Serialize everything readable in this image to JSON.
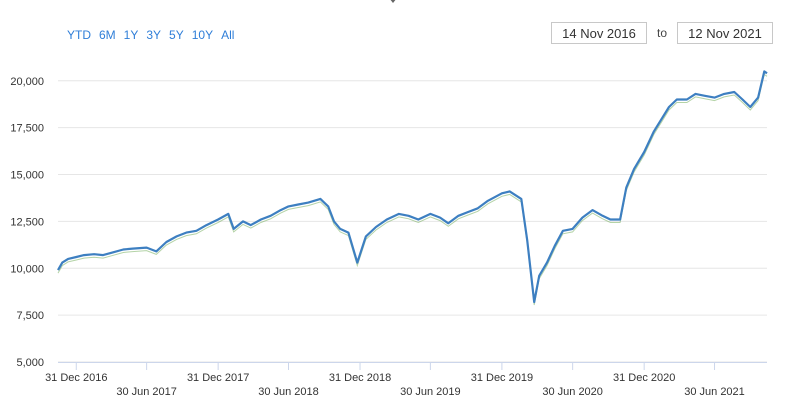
{
  "range_selector": {
    "buttons": [
      "YTD",
      "6M",
      "1Y",
      "3Y",
      "5Y",
      "10Y",
      "All"
    ],
    "from_date": "14 Nov 2016",
    "to_label": "to",
    "to_date": "12 Nov 2021"
  },
  "colors": {
    "line": "#3d7fc1",
    "line_secondary": "#6aa84f",
    "grid": "#e6e6e6",
    "button_text": "#2f7ed8"
  },
  "chart_data": {
    "type": "line",
    "title": "",
    "xlabel": "",
    "ylabel": "",
    "ylim": [
      5000,
      21000
    ],
    "yticks": [
      5000,
      7500,
      10000,
      12500,
      15000,
      17500,
      20000
    ],
    "ytick_labels": [
      "5,000",
      "7,500",
      "10,000",
      "12,500",
      "15,000",
      "17,500",
      "20,000"
    ],
    "xlim": [
      "2016-11-14",
      "2021-11-12"
    ],
    "xticks": [
      "2016-12-31",
      "2017-06-30",
      "2017-12-31",
      "2018-06-30",
      "2018-12-31",
      "2019-06-30",
      "2019-12-31",
      "2020-06-30",
      "2020-12-31",
      "2021-06-30"
    ],
    "xtick_labels": [
      "31 Dec 2016",
      "30 Jun 2017",
      "31 Dec 2017",
      "30 Jun 2018",
      "31 Dec 2018",
      "30 Jun 2019",
      "31 Dec 2019",
      "30 Jun 2020",
      "31 Dec 2020",
      "30 Jun 2021"
    ],
    "grid": "horizontal",
    "series": [
      {
        "x": [
          "2016-11-14",
          "2016-11-25",
          "2016-12-10",
          "2016-12-31",
          "2017-01-20",
          "2017-02-15",
          "2017-03-10",
          "2017-04-05",
          "2017-05-01",
          "2017-05-25",
          "2017-06-30",
          "2017-07-25",
          "2017-08-20",
          "2017-09-15",
          "2017-10-10",
          "2017-11-05",
          "2017-12-01",
          "2017-12-31",
          "2018-01-26",
          "2018-02-09",
          "2018-03-05",
          "2018-03-25",
          "2018-04-20",
          "2018-05-15",
          "2018-06-10",
          "2018-06-30",
          "2018-07-25",
          "2018-08-20",
          "2018-09-20",
          "2018-10-10",
          "2018-10-25",
          "2018-11-10",
          "2018-12-01",
          "2018-12-24",
          "2019-01-15",
          "2019-02-10",
          "2019-03-10",
          "2019-04-10",
          "2019-05-05",
          "2019-05-30",
          "2019-06-30",
          "2019-07-25",
          "2019-08-15",
          "2019-09-10",
          "2019-10-05",
          "2019-10-30",
          "2019-11-25",
          "2019-12-31",
          "2020-01-20",
          "2020-02-19",
          "2020-03-05",
          "2020-03-23",
          "2020-04-05",
          "2020-04-25",
          "2020-05-15",
          "2020-06-05",
          "2020-06-30",
          "2020-07-25",
          "2020-08-20",
          "2020-09-15",
          "2020-10-05",
          "2020-10-30",
          "2020-11-15",
          "2020-12-05",
          "2020-12-31",
          "2021-01-25",
          "2021-02-15",
          "2021-03-05",
          "2021-03-25",
          "2021-04-20",
          "2021-05-12",
          "2021-06-05",
          "2021-06-30",
          "2021-07-25",
          "2021-08-20",
          "2021-09-10",
          "2021-09-30",
          "2021-10-20",
          "2021-11-05",
          "2021-11-12"
        ],
        "values": [
          9900,
          10300,
          10500,
          10600,
          10700,
          10750,
          10700,
          10850,
          11000,
          11050,
          11100,
          10900,
          11400,
          11700,
          11900,
          12000,
          12300,
          12600,
          12900,
          12100,
          12500,
          12300,
          12600,
          12800,
          13100,
          13300,
          13400,
          13500,
          13700,
          13300,
          12500,
          12100,
          11900,
          10300,
          11700,
          12200,
          12600,
          12900,
          12800,
          12600,
          12900,
          12700,
          12400,
          12800,
          13000,
          13200,
          13600,
          14000,
          14100,
          13700,
          11500,
          8200,
          9600,
          10300,
          11200,
          12000,
          12100,
          12700,
          13100,
          12800,
          12600,
          12600,
          14300,
          15300,
          16200,
          17300,
          18000,
          18600,
          19000,
          19000,
          19300,
          19200,
          19100,
          19300,
          19400,
          19000,
          18600,
          19100,
          20500,
          20400
        ]
      }
    ]
  }
}
